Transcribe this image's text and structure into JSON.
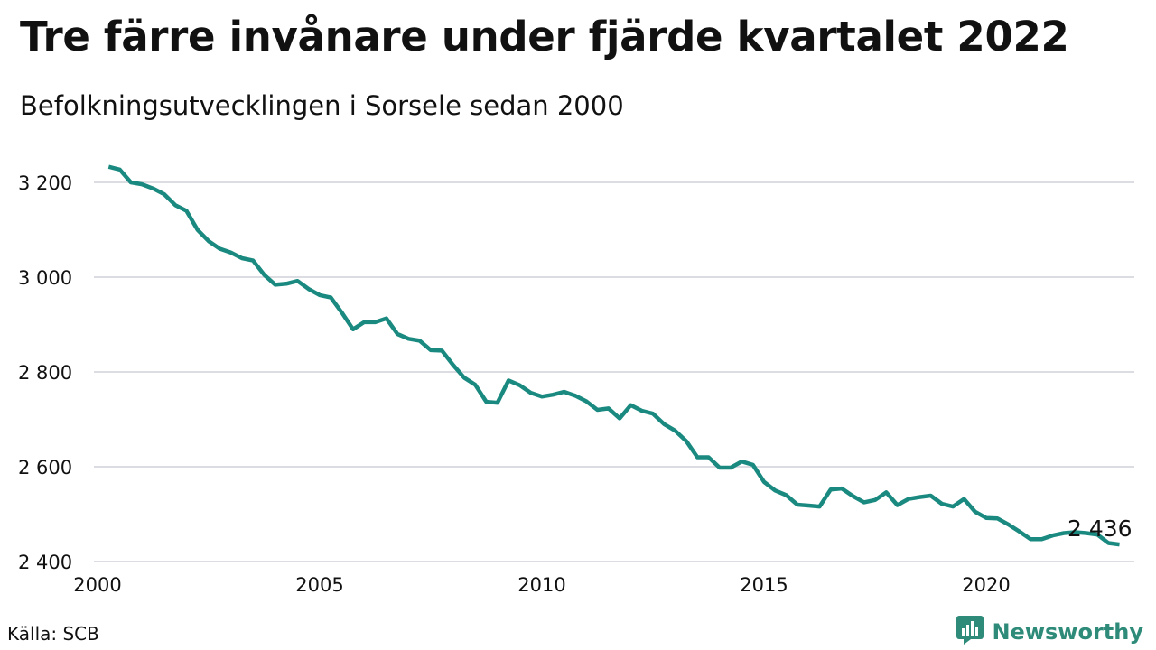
{
  "title": "Tre färre invånare under fjärde kvartalet 2022",
  "subtitle": "Befolkningsutvecklingen i Sorsele sedan 2000",
  "source": "Källa: SCB",
  "brand": {
    "name": "Newsworthy",
    "icon": "newsworthy-logo-icon"
  },
  "colors": {
    "line": "#1a8a80",
    "grid": "#dcdde3",
    "brand": "#2e8b7a"
  },
  "chart_data": {
    "type": "line",
    "title": "Tre färre invånare under fjärde kvartalet 2022",
    "subtitle": "Befolkningsutvecklingen i Sorsele sedan 2000",
    "xlabel": "",
    "ylabel": "",
    "xlim": [
      2000,
      2023.25
    ],
    "ylim": [
      2400,
      3240
    ],
    "grid": "horizontal",
    "x_ticks": [
      2000,
      2005,
      2010,
      2015,
      2020
    ],
    "x_tick_labels": [
      "2000",
      "2005",
      "2010",
      "2015",
      "2020"
    ],
    "y_ticks": [
      2400,
      2600,
      2800,
      3000,
      3200
    ],
    "y_tick_labels": [
      "2 400",
      "2 600",
      "2 800",
      "3 000",
      "3 200"
    ],
    "end_label": "2 436",
    "series": [
      {
        "x_start": 2000.25,
        "x_step": 0.25,
        "values": [
          3233,
          3227,
          3200,
          3196,
          3187,
          3175,
          3152,
          3140,
          3100,
          3076,
          3060,
          3052,
          3040,
          3035,
          3005,
          2984,
          2986,
          2992,
          2975,
          2962,
          2957,
          2925,
          2890,
          2905,
          2905,
          2913,
          2880,
          2870,
          2866,
          2846,
          2845,
          2815,
          2788,
          2773,
          2737,
          2735,
          2782,
          2772,
          2756,
          2748,
          2752,
          2758,
          2750,
          2738,
          2720,
          2723,
          2702,
          2730,
          2718,
          2712,
          2690,
          2676,
          2654,
          2620,
          2620,
          2598,
          2598,
          2611,
          2604,
          2568,
          2550,
          2540,
          2520,
          2518,
          2516,
          2552,
          2554,
          2538,
          2525,
          2530,
          2546,
          2519,
          2532,
          2536,
          2539,
          2522,
          2516,
          2532,
          2505,
          2492,
          2491,
          2478,
          2463,
          2447,
          2447,
          2455,
          2460,
          2462,
          2460,
          2457,
          2439,
          2436
        ]
      }
    ]
  }
}
